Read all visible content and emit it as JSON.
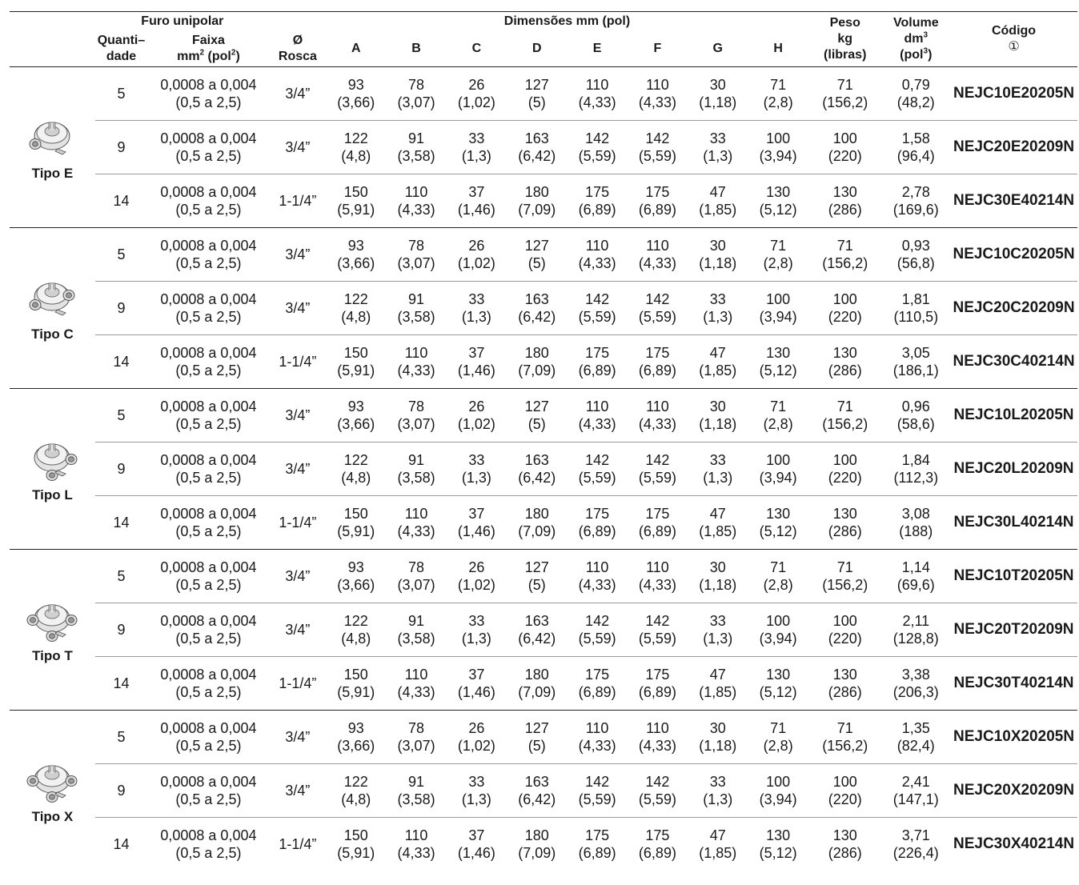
{
  "header": {
    "furo_unipolar": "Furo unipolar",
    "quantidade": "Quanti–\ndade",
    "faixa_line1": "Faixa",
    "faixa_line2_a": "mm",
    "faixa_line2_sup1": "2",
    "faixa_line2_b": " (pol",
    "faixa_line2_sup2": "2",
    "faixa_line2_c": ")",
    "rosca_line1": "Ø",
    "rosca_line2": "Rosca",
    "dimensoes": "Dimensões mm (pol)",
    "dims": [
      "A",
      "B",
      "C",
      "D",
      "E",
      "F",
      "G",
      "H"
    ],
    "peso_line1": "Peso",
    "peso_line2": "kg",
    "peso_line3": "(libras)",
    "volume_line1": "Volume",
    "volume_line2_a": "dm",
    "volume_line2_sup": "3",
    "volume_line3_a": "(pol",
    "volume_line3_sup": "3",
    "volume_line3_b": ")",
    "codigo_line1": "Código",
    "codigo_line2": "①"
  },
  "groups": [
    {
      "type_label": "Tipo E",
      "box_icon": "junction-box-type-e-icon",
      "rows": [
        {
          "qty": "5",
          "range": [
            "0,0008 a 0,004",
            "(0,5 a 2,5)"
          ],
          "thread": "3/4”",
          "dims": [
            [
              "93",
              "(3,66)"
            ],
            [
              "78",
              "(3,07)"
            ],
            [
              "26",
              "(1,02)"
            ],
            [
              "127",
              "(5)"
            ],
            [
              "110",
              "(4,33)"
            ],
            [
              "110",
              "(4,33)"
            ],
            [
              "30",
              "(1,18)"
            ],
            [
              "71",
              "(2,8)"
            ]
          ],
          "weight": [
            "71",
            "(156,2)"
          ],
          "volume": [
            "0,79",
            "(48,2)"
          ],
          "code": "NEJC10E20205N"
        },
        {
          "qty": "9",
          "range": [
            "0,0008 a 0,004",
            "(0,5 a 2,5)"
          ],
          "thread": "3/4”",
          "dims": [
            [
              "122",
              "(4,8)"
            ],
            [
              "91",
              "(3,58)"
            ],
            [
              "33",
              "(1,3)"
            ],
            [
              "163",
              "(6,42)"
            ],
            [
              "142",
              "(5,59)"
            ],
            [
              "142",
              "(5,59)"
            ],
            [
              "33",
              "(1,3)"
            ],
            [
              "100",
              "(3,94)"
            ]
          ],
          "weight": [
            "100",
            "(220)"
          ],
          "volume": [
            "1,58",
            "(96,4)"
          ],
          "code": "NEJC20E20209N"
        },
        {
          "qty": "14",
          "range": [
            "0,0008 a 0,004",
            "(0,5 a 2,5)"
          ],
          "thread": "1-1/4”",
          "dims": [
            [
              "150",
              "(5,91)"
            ],
            [
              "110",
              "(4,33)"
            ],
            [
              "37",
              "(1,46)"
            ],
            [
              "180",
              "(7,09)"
            ],
            [
              "175",
              "(6,89)"
            ],
            [
              "175",
              "(6,89)"
            ],
            [
              "47",
              "(1,85)"
            ],
            [
              "130",
              "(5,12)"
            ]
          ],
          "weight": [
            "130",
            "(286)"
          ],
          "volume": [
            "2,78",
            "(169,6)"
          ],
          "code": "NEJC30E40214N"
        }
      ]
    },
    {
      "type_label": "Tipo C",
      "box_icon": "junction-box-type-c-icon",
      "rows": [
        {
          "qty": "5",
          "range": [
            "0,0008 a 0,004",
            "(0,5 a 2,5)"
          ],
          "thread": "3/4”",
          "dims": [
            [
              "93",
              "(3,66)"
            ],
            [
              "78",
              "(3,07)"
            ],
            [
              "26",
              "(1,02)"
            ],
            [
              "127",
              "(5)"
            ],
            [
              "110",
              "(4,33)"
            ],
            [
              "110",
              "(4,33)"
            ],
            [
              "30",
              "(1,18)"
            ],
            [
              "71",
              "(2,8)"
            ]
          ],
          "weight": [
            "71",
            "(156,2)"
          ],
          "volume": [
            "0,93",
            "(56,8)"
          ],
          "code": "NEJC10C20205N"
        },
        {
          "qty": "9",
          "range": [
            "0,0008 a 0,004",
            "(0,5 a 2,5)"
          ],
          "thread": "3/4”",
          "dims": [
            [
              "122",
              "(4,8)"
            ],
            [
              "91",
              "(3,58)"
            ],
            [
              "33",
              "(1,3)"
            ],
            [
              "163",
              "(6,42)"
            ],
            [
              "142",
              "(5,59)"
            ],
            [
              "142",
              "(5,59)"
            ],
            [
              "33",
              "(1,3)"
            ],
            [
              "100",
              "(3,94)"
            ]
          ],
          "weight": [
            "100",
            "(220)"
          ],
          "volume": [
            "1,81",
            "(110,5)"
          ],
          "code": "NEJC20C20209N"
        },
        {
          "qty": "14",
          "range": [
            "0,0008 a 0,004",
            "(0,5 a 2,5)"
          ],
          "thread": "1-1/4”",
          "dims": [
            [
              "150",
              "(5,91)"
            ],
            [
              "110",
              "(4,33)"
            ],
            [
              "37",
              "(1,46)"
            ],
            [
              "180",
              "(7,09)"
            ],
            [
              "175",
              "(6,89)"
            ],
            [
              "175",
              "(6,89)"
            ],
            [
              "47",
              "(1,85)"
            ],
            [
              "130",
              "(5,12)"
            ]
          ],
          "weight": [
            "130",
            "(286)"
          ],
          "volume": [
            "3,05",
            "(186,1)"
          ],
          "code": "NEJC30C40214N"
        }
      ]
    },
    {
      "type_label": "Tipo L",
      "box_icon": "junction-box-type-l-icon",
      "rows": [
        {
          "qty": "5",
          "range": [
            "0,0008 a 0,004",
            "(0,5 a 2,5)"
          ],
          "thread": "3/4”",
          "dims": [
            [
              "93",
              "(3,66)"
            ],
            [
              "78",
              "(3,07)"
            ],
            [
              "26",
              "(1,02)"
            ],
            [
              "127",
              "(5)"
            ],
            [
              "110",
              "(4,33)"
            ],
            [
              "110",
              "(4,33)"
            ],
            [
              "30",
              "(1,18)"
            ],
            [
              "71",
              "(2,8)"
            ]
          ],
          "weight": [
            "71",
            "(156,2)"
          ],
          "volume": [
            "0,96",
            "(58,6)"
          ],
          "code": "NEJC10L20205N"
        },
        {
          "qty": "9",
          "range": [
            "0,0008 a 0,004",
            "(0,5 a 2,5)"
          ],
          "thread": "3/4”",
          "dims": [
            [
              "122",
              "(4,8)"
            ],
            [
              "91",
              "(3,58)"
            ],
            [
              "33",
              "(1,3)"
            ],
            [
              "163",
              "(6,42)"
            ],
            [
              "142",
              "(5,59)"
            ],
            [
              "142",
              "(5,59)"
            ],
            [
              "33",
              "(1,3)"
            ],
            [
              "100",
              "(3,94)"
            ]
          ],
          "weight": [
            "100",
            "(220)"
          ],
          "volume": [
            "1,84",
            "(112,3)"
          ],
          "code": "NEJC20L20209N"
        },
        {
          "qty": "14",
          "range": [
            "0,0008 a 0,004",
            "(0,5 a 2,5)"
          ],
          "thread": "1-1/4”",
          "dims": [
            [
              "150",
              "(5,91)"
            ],
            [
              "110",
              "(4,33)"
            ],
            [
              "37",
              "(1,46)"
            ],
            [
              "180",
              "(7,09)"
            ],
            [
              "175",
              "(6,89)"
            ],
            [
              "175",
              "(6,89)"
            ],
            [
              "47",
              "(1,85)"
            ],
            [
              "130",
              "(5,12)"
            ]
          ],
          "weight": [
            "130",
            "(286)"
          ],
          "volume": [
            "3,08",
            "(188)"
          ],
          "code": "NEJC30L40214N"
        }
      ]
    },
    {
      "type_label": "Tipo T",
      "box_icon": "junction-box-type-t-icon",
      "rows": [
        {
          "qty": "5",
          "range": [
            "0,0008 a 0,004",
            "(0,5 a 2,5)"
          ],
          "thread": "3/4”",
          "dims": [
            [
              "93",
              "(3,66)"
            ],
            [
              "78",
              "(3,07)"
            ],
            [
              "26",
              "(1,02)"
            ],
            [
              "127",
              "(5)"
            ],
            [
              "110",
              "(4,33)"
            ],
            [
              "110",
              "(4,33)"
            ],
            [
              "30",
              "(1,18)"
            ],
            [
              "71",
              "(2,8)"
            ]
          ],
          "weight": [
            "71",
            "(156,2)"
          ],
          "volume": [
            "1,14",
            "(69,6)"
          ],
          "code": "NEJC10T20205N"
        },
        {
          "qty": "9",
          "range": [
            "0,0008 a 0,004",
            "(0,5 a 2,5)"
          ],
          "thread": "3/4”",
          "dims": [
            [
              "122",
              "(4,8)"
            ],
            [
              "91",
              "(3,58)"
            ],
            [
              "33",
              "(1,3)"
            ],
            [
              "163",
              "(6,42)"
            ],
            [
              "142",
              "(5,59)"
            ],
            [
              "142",
              "(5,59)"
            ],
            [
              "33",
              "(1,3)"
            ],
            [
              "100",
              "(3,94)"
            ]
          ],
          "weight": [
            "100",
            "(220)"
          ],
          "volume": [
            "2,11",
            "(128,8)"
          ],
          "code": "NEJC20T20209N"
        },
        {
          "qty": "14",
          "range": [
            "0,0008 a 0,004",
            "(0,5 a 2,5)"
          ],
          "thread": "1-1/4”",
          "dims": [
            [
              "150",
              "(5,91)"
            ],
            [
              "110",
              "(4,33)"
            ],
            [
              "37",
              "(1,46)"
            ],
            [
              "180",
              "(7,09)"
            ],
            [
              "175",
              "(6,89)"
            ],
            [
              "175",
              "(6,89)"
            ],
            [
              "47",
              "(1,85)"
            ],
            [
              "130",
              "(5,12)"
            ]
          ],
          "weight": [
            "130",
            "(286)"
          ],
          "volume": [
            "3,38",
            "(206,3)"
          ],
          "code": "NEJC30T40214N"
        }
      ]
    },
    {
      "type_label": "Tipo X",
      "box_icon": "junction-box-type-x-icon",
      "rows": [
        {
          "qty": "5",
          "range": [
            "0,0008 a 0,004",
            "(0,5 a 2,5)"
          ],
          "thread": "3/4”",
          "dims": [
            [
              "93",
              "(3,66)"
            ],
            [
              "78",
              "(3,07)"
            ],
            [
              "26",
              "(1,02)"
            ],
            [
              "127",
              "(5)"
            ],
            [
              "110",
              "(4,33)"
            ],
            [
              "110",
              "(4,33)"
            ],
            [
              "30",
              "(1,18)"
            ],
            [
              "71",
              "(2,8)"
            ]
          ],
          "weight": [
            "71",
            "(156,2)"
          ],
          "volume": [
            "1,35",
            "(82,4)"
          ],
          "code": "NEJC10X20205N"
        },
        {
          "qty": "9",
          "range": [
            "0,0008 a 0,004",
            "(0,5 a 2,5)"
          ],
          "thread": "3/4”",
          "dims": [
            [
              "122",
              "(4,8)"
            ],
            [
              "91",
              "(3,58)"
            ],
            [
              "33",
              "(1,3)"
            ],
            [
              "163",
              "(6,42)"
            ],
            [
              "142",
              "(5,59)"
            ],
            [
              "142",
              "(5,59)"
            ],
            [
              "33",
              "(1,3)"
            ],
            [
              "100",
              "(3,94)"
            ]
          ],
          "weight": [
            "100",
            "(220)"
          ],
          "volume": [
            "2,41",
            "(147,1)"
          ],
          "code": "NEJC20X20209N"
        },
        {
          "qty": "14",
          "range": [
            "0,0008 a 0,004",
            "(0,5 a 2,5)"
          ],
          "thread": "1-1/4”",
          "dims": [
            [
              "150",
              "(5,91)"
            ],
            [
              "110",
              "(4,33)"
            ],
            [
              "37",
              "(1,46)"
            ],
            [
              "180",
              "(7,09)"
            ],
            [
              "175",
              "(6,89)"
            ],
            [
              "175",
              "(6,89)"
            ],
            [
              "47",
              "(1,85)"
            ],
            [
              "130",
              "(5,12)"
            ]
          ],
          "weight": [
            "130",
            "(286)"
          ],
          "volume": [
            "3,71",
            "(226,4)"
          ],
          "code": "NEJC30X40214N"
        }
      ]
    }
  ]
}
